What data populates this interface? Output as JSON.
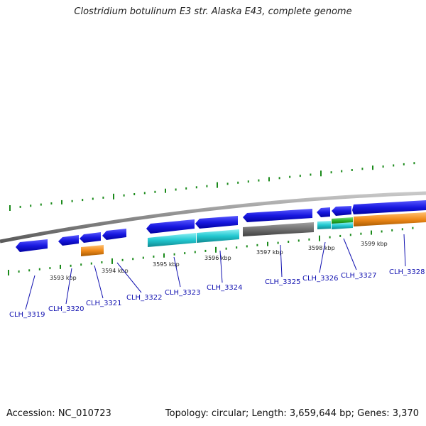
{
  "title": "Clostridium botulinum E3 str. Alaska E43, complete genome",
  "footer": {
    "accession": "Accession: NC_010723",
    "summary": "Topology: circular; Length: 3,659,644 bp; Genes: 3,370"
  },
  "kbp_labels": [
    "3593 kbp",
    "3594 kbp",
    "3595 kbp",
    "3596 kbp",
    "3597 kbp",
    "3598 kbp",
    "3599 kbp"
  ],
  "genes": [
    "CLH_3319",
    "CLH_3320",
    "CLH_3321",
    "CLH_3322",
    "CLH_3323",
    "CLH_3324",
    "CLH_3325",
    "CLH_3326",
    "CLH_3327",
    "CLH_3328"
  ],
  "colors": {
    "cds_blue": "#1818e0",
    "cyan": "#22c8d0",
    "orange": "#f08a1a",
    "gray": "#707070",
    "green": "#2ab02a",
    "label_blue": "#1010b0",
    "tick_green": "#1a8a1a",
    "backbone": "#8a8a8a"
  }
}
